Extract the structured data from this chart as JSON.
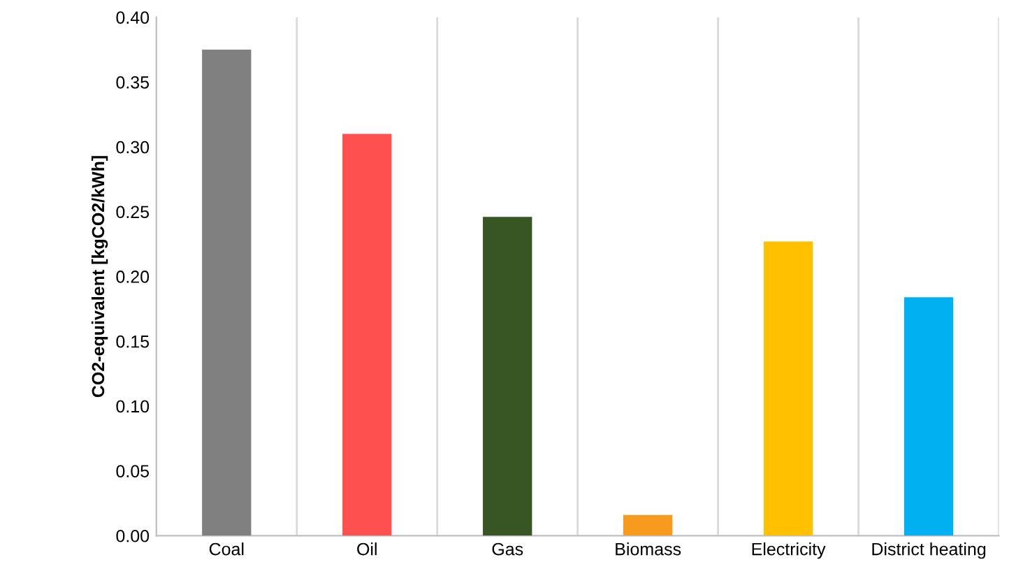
{
  "chart_data": {
    "type": "bar",
    "ylabel": "CO2-equivalent [kgCO2/kWh]",
    "categories": [
      "Coal",
      "Oil",
      "Gas",
      "Biomass",
      "Electricity",
      "District heating"
    ],
    "values": [
      0.375,
      0.31,
      0.246,
      0.016,
      0.227,
      0.184
    ],
    "colors": [
      "#808080",
      "#ff5050",
      "#375623",
      "#f79a1e",
      "#ffc000",
      "#00b0f0"
    ],
    "ylim": [
      0,
      0.4
    ],
    "yticks": [
      {
        "value": 0,
        "label": "0.00"
      },
      {
        "value": 0.05,
        "label": "0.05"
      },
      {
        "value": 0.1,
        "label": "0.10"
      },
      {
        "value": 0.15,
        "label": "0.15"
      },
      {
        "value": 0.2,
        "label": "0.20"
      },
      {
        "value": 0.25,
        "label": "0.25"
      },
      {
        "value": 0.3,
        "label": "0.30"
      },
      {
        "value": 0.35,
        "label": "0.35"
      },
      {
        "value": 0.4,
        "label": "0.40"
      }
    ],
    "grid": "x"
  }
}
